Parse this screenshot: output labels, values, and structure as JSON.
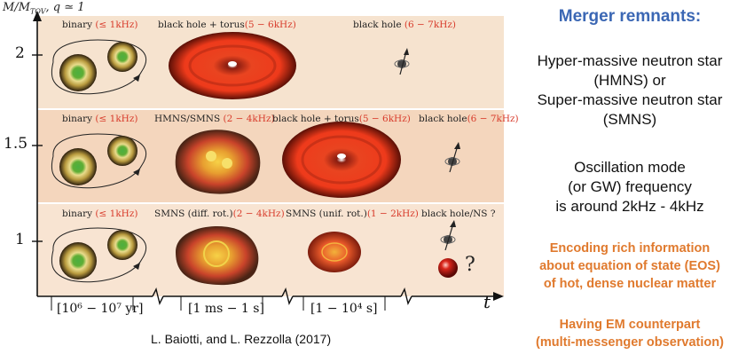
{
  "y_axis": {
    "label": "M/M",
    "label_sub": "TOV",
    "label_tail": ", q ≃ 1",
    "ticks": [
      "2",
      "1.5",
      "1"
    ]
  },
  "x_axis": {
    "label": "t",
    "time_labels": [
      "[10⁶ − 10⁷ yr]",
      "[1 ms − 1 s]",
      "[1 − 10⁴ s]"
    ]
  },
  "rows": [
    {
      "binary": "binary",
      "binary_freq": "(≤ 1kHz)",
      "s1": "black hole + torus",
      "s1_freq": "(5 − 6kHz)",
      "s2": "black hole",
      "s2_freq": "(6 − 7kHz)"
    },
    {
      "binary": "binary",
      "binary_freq": "(≤ 1kHz)",
      "s1": "HMNS/SMNS",
      "s1_freq": "(2 − 4kHz)",
      "s2": "black hole + torus",
      "s2_freq": "(5 − 6kHz)",
      "s3": "black hole",
      "s3_freq": "(6 − 7kHz)"
    },
    {
      "binary": "binary",
      "binary_freq": "(≤ 1kHz)",
      "s1": "SMNS (diff. rot.)",
      "s1_freq": "(2 − 4kHz)",
      "s2": "SMNS (unif. rot.)",
      "s2_freq": "(1 − 2kHz)",
      "s3": "black hole/NS ?",
      "question": "?"
    }
  ],
  "credit": "L. Baiotti, and L. Rezzolla (2017)",
  "right_panel": {
    "title": "Merger remnants:",
    "para1": [
      "Hyper-massive neutron star",
      "(HMNS) or",
      "Super-massive neutron star",
      "(SMNS)"
    ],
    "para2": [
      "Oscillation mode",
      "(or GW) frequency",
      "is around  2kHz - 4kHz"
    ],
    "para3": [
      "Encoding rich information",
      "about equation of state (EOS)",
      "of hot, dense nuclear matter"
    ],
    "para4": [
      "Having EM counterpart",
      "(multi-messenger observation)"
    ]
  },
  "colors": {
    "accent_blue": "#3b67b4",
    "accent_orange": "#e07a2e",
    "freq_red": "#d83a2a"
  }
}
